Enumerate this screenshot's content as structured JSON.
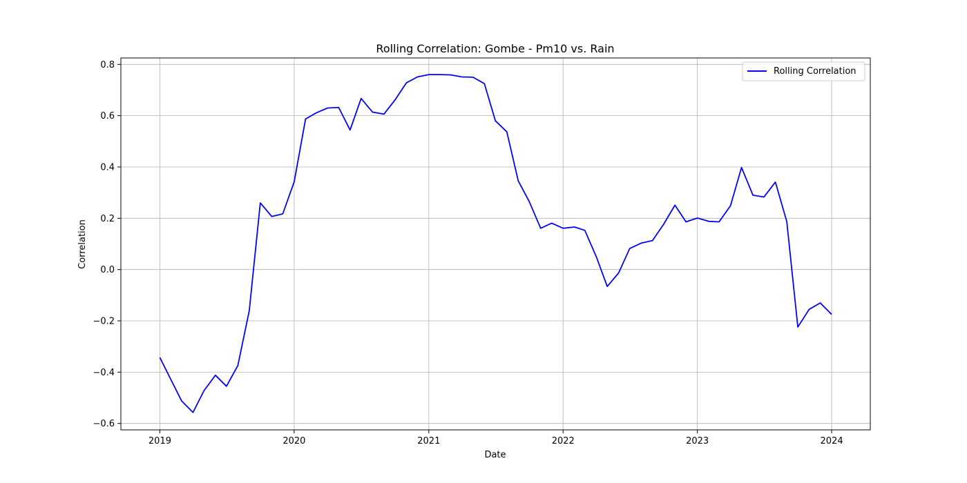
{
  "chart_data": {
    "type": "line",
    "title": "Rolling Correlation: Gombe - Pm10 vs. Rain",
    "xlabel": "Date",
    "ylabel": "Correlation",
    "xlim": [
      "2018-09-17",
      "2024-04-15"
    ],
    "ylim": [
      -0.625,
      0.825
    ],
    "x_ticks": [
      "2019",
      "2020",
      "2021",
      "2022",
      "2023",
      "2024"
    ],
    "y_ticks": [
      -0.6,
      -0.4,
      -0.2,
      0.0,
      0.2,
      0.4,
      0.6,
      0.8
    ],
    "y_tick_labels": [
      "−0.6",
      "−0.4",
      "−0.2",
      "0.0",
      "0.2",
      "0.4",
      "0.6",
      "0.8"
    ],
    "grid": true,
    "legend": {
      "position": "upper-right"
    },
    "series": [
      {
        "name": "Rolling Correlation",
        "color": "#0000ff",
        "x": [
          "2019-01-01",
          "2019-02-01",
          "2019-03-01",
          "2019-04-01",
          "2019-05-01",
          "2019-06-01",
          "2019-07-01",
          "2019-08-01",
          "2019-09-01",
          "2019-10-01",
          "2019-11-01",
          "2019-12-01",
          "2020-01-01",
          "2020-02-01",
          "2020-03-01",
          "2020-04-01",
          "2020-05-01",
          "2020-06-01",
          "2020-07-01",
          "2020-08-01",
          "2020-09-01",
          "2020-10-01",
          "2020-11-01",
          "2020-12-01",
          "2021-01-01",
          "2021-02-01",
          "2021-03-01",
          "2021-04-01",
          "2021-05-01",
          "2021-06-01",
          "2021-07-01",
          "2021-08-01",
          "2021-09-01",
          "2021-10-01",
          "2021-11-01",
          "2021-12-01",
          "2022-01-01",
          "2022-02-01",
          "2022-03-01",
          "2022-04-01",
          "2022-05-01",
          "2022-06-01",
          "2022-07-01",
          "2022-08-01",
          "2022-09-01",
          "2022-10-01",
          "2022-11-01",
          "2022-12-01",
          "2023-01-01",
          "2023-02-01",
          "2023-03-01",
          "2023-04-01",
          "2023-05-01",
          "2023-06-01",
          "2023-07-01",
          "2023-08-01",
          "2023-09-01",
          "2023-10-01",
          "2023-11-01",
          "2023-12-01",
          "2024-01-01"
        ],
        "y": [
          -0.343,
          -0.432,
          -0.512,
          -0.557,
          -0.472,
          -0.412,
          -0.455,
          -0.374,
          -0.16,
          0.26,
          0.207,
          0.217,
          0.342,
          0.587,
          0.611,
          0.63,
          0.632,
          0.544,
          0.667,
          0.614,
          0.606,
          0.661,
          0.728,
          0.751,
          0.76,
          0.76,
          0.759,
          0.751,
          0.75,
          0.725,
          0.58,
          0.537,
          0.346,
          0.265,
          0.161,
          0.181,
          0.161,
          0.166,
          0.153,
          0.051,
          -0.066,
          -0.013,
          0.082,
          0.103,
          0.113,
          0.176,
          0.251,
          0.186,
          0.201,
          0.188,
          0.186,
          0.249,
          0.398,
          0.29,
          0.283,
          0.341,
          0.187,
          -0.224,
          -0.155,
          -0.13,
          -0.175
        ]
      }
    ]
  }
}
